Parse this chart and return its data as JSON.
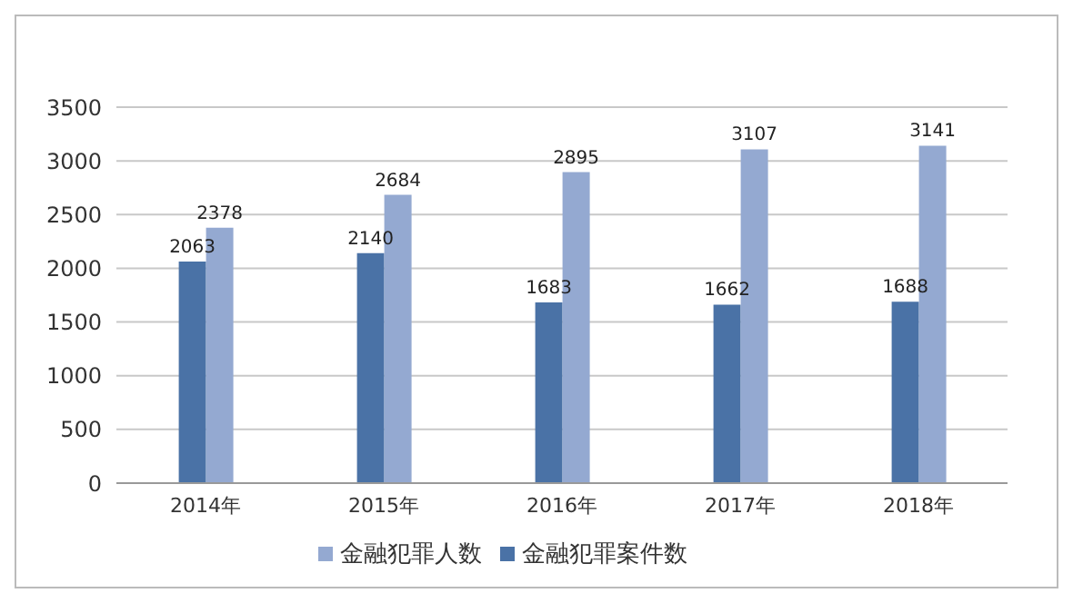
{
  "chart_data": {
    "type": "bar",
    "categories": [
      "2014年",
      "2015年",
      "2016年",
      "2017年",
      "2018年"
    ],
    "series": [
      {
        "name": "金融犯罪案件数",
        "color": "#4a72a6",
        "values": [
          2063,
          2140,
          1683,
          1662,
          1688
        ]
      },
      {
        "name": "金融犯罪人数",
        "color": "#94a9d1",
        "values": [
          2378,
          2684,
          2895,
          3107,
          3141
        ]
      }
    ],
    "ylim": [
      0,
      3500
    ],
    "yticks": [
      0,
      500,
      1000,
      1500,
      2000,
      2500,
      3000,
      3500
    ],
    "grid": "y",
    "legend": "bottom",
    "data_labels": true
  }
}
